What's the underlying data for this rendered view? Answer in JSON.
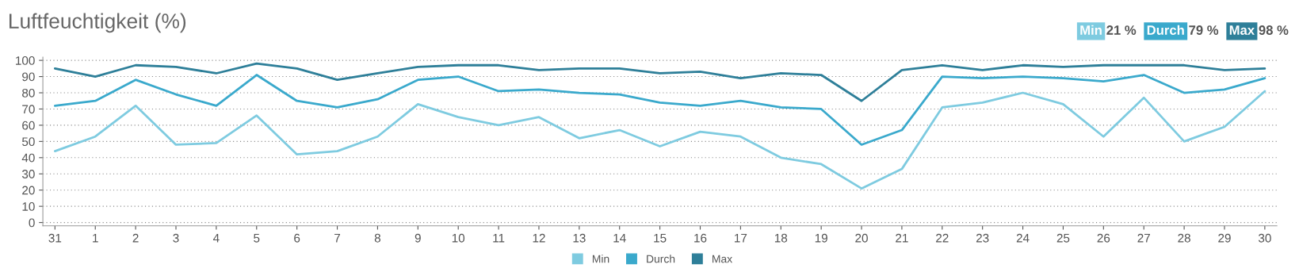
{
  "chart_data": {
    "type": "line",
    "title": "Luftfeuchtigkeit (%)",
    "categories": [
      "31",
      "1",
      "2",
      "3",
      "4",
      "5",
      "6",
      "7",
      "8",
      "9",
      "10",
      "11",
      "12",
      "13",
      "14",
      "15",
      "16",
      "17",
      "18",
      "19",
      "20",
      "21",
      "22",
      "23",
      "24",
      "25",
      "26",
      "27",
      "28",
      "29",
      "30"
    ],
    "series": [
      {
        "name": "Min",
        "color": "#7ecbe0",
        "values": [
          44,
          53,
          72,
          48,
          49,
          66,
          42,
          44,
          53,
          73,
          65,
          60,
          65,
          52,
          57,
          47,
          56,
          53,
          40,
          36,
          21,
          33,
          71,
          74,
          80,
          73,
          53,
          77,
          50,
          59,
          81
        ]
      },
      {
        "name": "Durch",
        "color": "#3aa9cc",
        "values": [
          72,
          75,
          88,
          79,
          72,
          91,
          75,
          71,
          76,
          88,
          90,
          81,
          82,
          80,
          79,
          74,
          72,
          75,
          71,
          70,
          48,
          57,
          90,
          89,
          90,
          89,
          87,
          91,
          80,
          82,
          89
        ]
      },
      {
        "name": "Max",
        "color": "#2e7f99",
        "values": [
          95,
          90,
          97,
          96,
          92,
          98,
          95,
          88,
          92,
          96,
          97,
          97,
          94,
          95,
          95,
          92,
          93,
          89,
          92,
          91,
          75,
          94,
          97,
          94,
          97,
          96,
          97,
          97,
          97,
          94,
          95
        ]
      }
    ],
    "annotations": [
      "21 %",
      "79 %",
      "98 %"
    ],
    "ylim": [
      -2,
      102
    ],
    "yticks": [
      0,
      10,
      20,
      30,
      40,
      50,
      60,
      70,
      80,
      90,
      100
    ],
    "grid": "y",
    "legend": "bottom",
    "marker": "none",
    "line_style": "solid"
  }
}
